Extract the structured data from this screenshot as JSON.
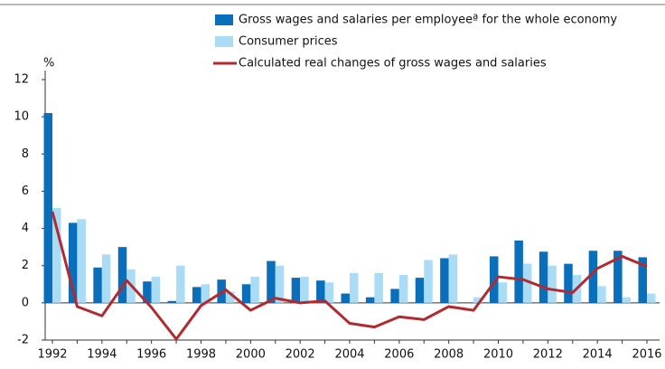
{
  "chart_data": {
    "type": "bar-line",
    "y_label": "%",
    "categories": [
      "1992",
      null,
      "1994",
      null,
      "1996",
      null,
      "1998",
      null,
      "2000",
      null,
      "2002",
      null,
      "2004",
      null,
      "2006",
      null,
      "2008",
      null,
      "2010",
      null,
      "2012",
      null,
      "2014",
      null,
      "2016"
    ],
    "series": [
      {
        "name": "Gross wages and salaries per employeeª for the whole economy",
        "color": "#0a6fba",
        "kind": "bar",
        "values": [
          10.2,
          4.3,
          1.9,
          3.0,
          1.15,
          0.1,
          0.85,
          1.25,
          1.0,
          2.25,
          1.35,
          1.2,
          0.5,
          0.3,
          0.75,
          1.35,
          2.4,
          0.0,
          2.5,
          3.35,
          2.75,
          2.1,
          2.8,
          2.8,
          2.45
        ]
      },
      {
        "name": "Consumer prices",
        "color": "#aadcf5",
        "kind": "bar",
        "values": [
          5.1,
          4.5,
          2.6,
          1.8,
          1.4,
          2.0,
          1.0,
          0.6,
          1.4,
          2.0,
          1.4,
          1.1,
          1.6,
          1.6,
          1.5,
          2.3,
          2.6,
          0.3,
          1.1,
          2.1,
          2.0,
          1.5,
          0.9,
          0.3,
          0.5
        ]
      },
      {
        "name": "Calculated real changes of gross wages and salaries",
        "color": "#b02a30",
        "kind": "line",
        "values": [
          4.9,
          -0.2,
          -0.7,
          1.2,
          -0.25,
          -1.95,
          -0.15,
          0.7,
          -0.4,
          0.25,
          0.0,
          0.1,
          -1.1,
          -1.3,
          -0.75,
          -0.9,
          -0.2,
          -0.4,
          1.4,
          1.25,
          0.75,
          0.55,
          1.85,
          2.5,
          1.95
        ]
      }
    ],
    "ylim": [
      -2,
      12
    ],
    "yticks": [
      -2,
      0,
      2,
      4,
      6,
      8,
      10,
      12
    ]
  }
}
